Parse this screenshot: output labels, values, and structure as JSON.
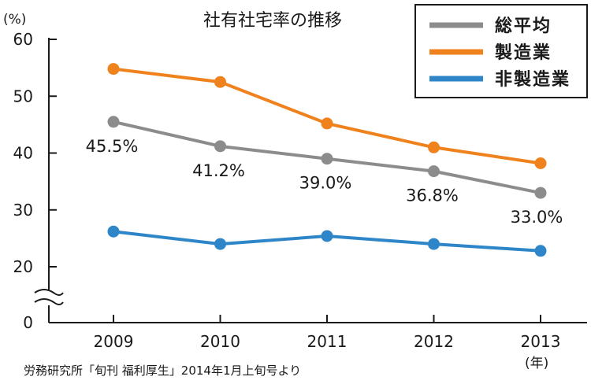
{
  "chart_data": {
    "type": "line",
    "title": "社有社宅率の推移",
    "y_unit": "(%)",
    "x_unit": "(年)",
    "categories": [
      "2009",
      "2010",
      "2011",
      "2012",
      "2013"
    ],
    "y_ticks": [
      "60",
      "50",
      "40",
      "30",
      "20",
      "0"
    ],
    "ylim": [
      0,
      60
    ],
    "axis_break": true,
    "series": [
      {
        "name": "総平均",
        "color": "#8c8c8c",
        "values": [
          45.5,
          41.2,
          39.0,
          36.8,
          33.0
        ]
      },
      {
        "name": "製造業",
        "color": "#f0821e",
        "values": [
          54.8,
          52.5,
          45.2,
          41.0,
          38.2
        ]
      },
      {
        "name": "非製造業",
        "color": "#2e86c8",
        "values": [
          26.2,
          24.0,
          25.4,
          24.0,
          22.8
        ]
      }
    ],
    "data_labels": [
      "45.5%",
      "41.2%",
      "39.0%",
      "36.8%",
      "33.0%"
    ],
    "legend_position": "top-right",
    "grid": false,
    "source": "労務研究所「旬刊 福利厚生」2014年1月上旬号より"
  }
}
